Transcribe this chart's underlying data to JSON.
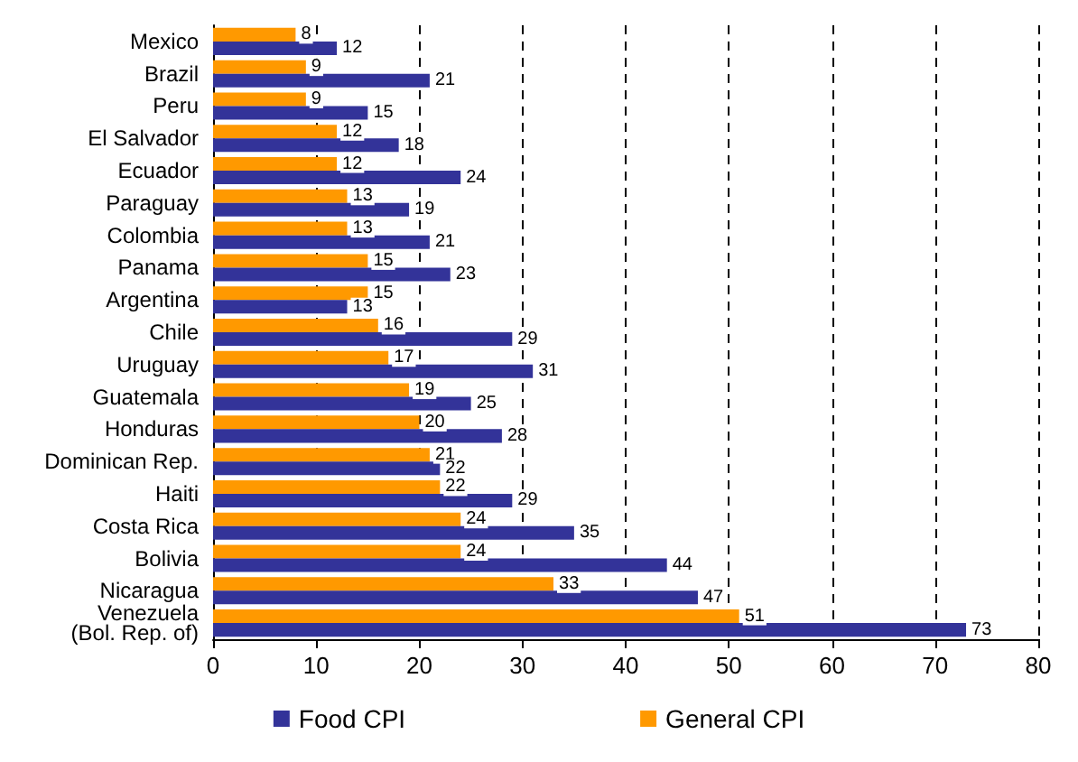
{
  "chart_data": {
    "type": "bar",
    "orientation": "horizontal",
    "categories": [
      "Mexico",
      "Brazil",
      "Peru",
      "El Salvador",
      "Ecuador",
      "Paraguay",
      "Colombia",
      "Panama",
      "Argentina",
      "Chile",
      "Uruguay",
      "Guatemala",
      "Honduras",
      "Dominican Rep.",
      "Haiti",
      "Costa Rica",
      "Bolivia",
      "Nicaragua",
      "Venezuela\n(Bol. Rep. of)"
    ],
    "series": [
      {
        "name": "Food CPI",
        "color": "#333399",
        "values": [
          12,
          21,
          15,
          18,
          24,
          19,
          21,
          23,
          13,
          29,
          31,
          25,
          28,
          22,
          29,
          35,
          44,
          47,
          73
        ]
      },
      {
        "name": "General CPI",
        "color": "#ff9900",
        "values": [
          8,
          9,
          9,
          12,
          12,
          13,
          13,
          15,
          15,
          16,
          17,
          19,
          20,
          21,
          22,
          24,
          24,
          33,
          51
        ]
      }
    ],
    "xlim": [
      0,
      80
    ],
    "xticks": [
      0,
      10,
      20,
      30,
      40,
      50,
      60,
      70,
      80
    ],
    "grid": "x",
    "legend": "bottom",
    "data_labels": true
  }
}
